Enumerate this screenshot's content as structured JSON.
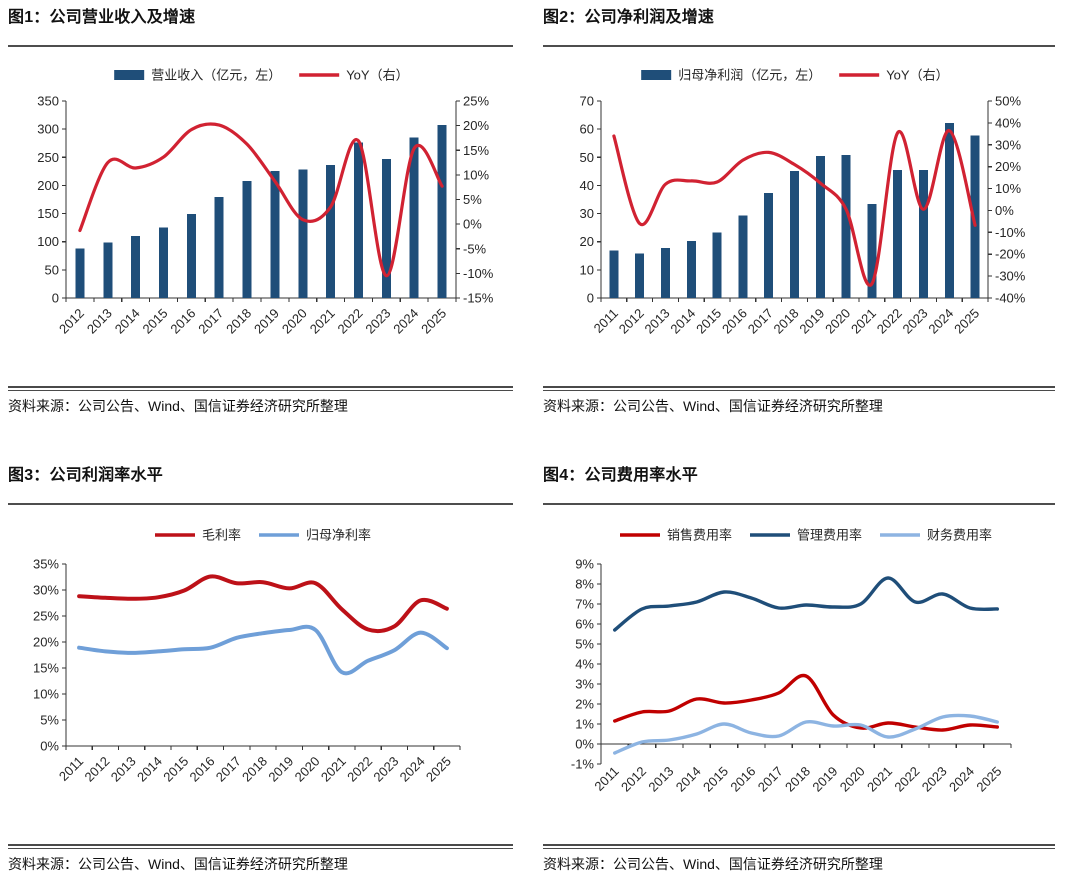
{
  "chart_data": [
    {
      "type": "combo_bar_line",
      "title": "图1：公司营业收入及增速",
      "source": "资料来源：公司公告、Wind、国信证券经济研究所整理",
      "categories": [
        "2012",
        "2013",
        "2014",
        "2015",
        "2016",
        "2017",
        "2018",
        "2019",
        "2020",
        "2021",
        "2022",
        "2023",
        "2024",
        "2025"
      ],
      "bar_series": {
        "name": "营业收入（亿元，左）",
        "color": "#1F4E79",
        "values": [
          88,
          99,
          110,
          125,
          149,
          179,
          208,
          226,
          228,
          236,
          276,
          247,
          285,
          307
        ]
      },
      "line_series": {
        "name": "YoY（右）",
        "color": "#D12232",
        "values": [
          -1.3,
          12.5,
          11.4,
          13.6,
          19.2,
          20.1,
          16.2,
          8.7,
          0.9,
          3.5,
          16.9,
          -10.5,
          15.4,
          7.7
        ]
      },
      "left_axis": {
        "min": 0,
        "max": 350,
        "ticks": [
          "0",
          "50",
          "100",
          "150",
          "200",
          "250",
          "300",
          "350"
        ]
      },
      "right_axis": {
        "min": -15,
        "max": 25,
        "ticks": [
          "-15%",
          "-10%",
          "-5%",
          "0%",
          "5%",
          "10%",
          "15%",
          "20%",
          "25%"
        ]
      },
      "grid": false,
      "legend_position": "top"
    },
    {
      "type": "combo_bar_line",
      "title": "图2：公司净利润及增速",
      "source": "资料来源：公司公告、Wind、国信证券经济研究所整理",
      "categories": [
        "2011",
        "2012",
        "2013",
        "2014",
        "2015",
        "2016",
        "2017",
        "2018",
        "2019",
        "2020",
        "2021",
        "2022",
        "2023",
        "2024",
        "2025"
      ],
      "bar_series": {
        "name": "归母净利润（亿元，左）",
        "color": "#1F4E79",
        "values": [
          16.8,
          15.8,
          17.7,
          20.3,
          23.3,
          29.3,
          37.3,
          45.1,
          50.5,
          50.8,
          33.4,
          45.4,
          45.4,
          62.1,
          57.8
        ]
      },
      "line_series": {
        "name": "YoY（右）",
        "color": "#D12232",
        "values": [
          34,
          -6,
          12,
          13.5,
          13,
          23,
          26.5,
          21,
          12.5,
          0.5,
          -33.5,
          35.5,
          0.5,
          36.5,
          -6.8
        ]
      },
      "left_axis": {
        "min": 0,
        "max": 70,
        "ticks": [
          "0",
          "10",
          "20",
          "30",
          "40",
          "50",
          "60",
          "70"
        ]
      },
      "right_axis": {
        "min": -40,
        "max": 50,
        "ticks": [
          "-40%",
          "-30%",
          "-20%",
          "-10%",
          "0%",
          "10%",
          "20%",
          "30%",
          "40%",
          "50%"
        ]
      },
      "grid": false,
      "legend_position": "top"
    },
    {
      "type": "line",
      "title": "图3：公司利润率水平",
      "source": "资料来源：公司公告、Wind、国信证券经济研究所整理",
      "categories": [
        "2011",
        "2012",
        "2013",
        "2014",
        "2015",
        "2016",
        "2017",
        "2018",
        "2019",
        "2020",
        "2021",
        "2022",
        "2023",
        "2024",
        "2025"
      ],
      "series": [
        {
          "name": "毛利率",
          "color": "#BD1118",
          "values": [
            28.8,
            28.5,
            28.3,
            28.6,
            29.9,
            32.6,
            31.3,
            31.5,
            30.3,
            31.3,
            26.3,
            22.4,
            23.0,
            28.0,
            26.4
          ]
        },
        {
          "name": "归母净利率",
          "color": "#6F9FD8",
          "values": [
            18.9,
            18.2,
            17.9,
            18.2,
            18.6,
            18.9,
            20.8,
            21.7,
            22.3,
            22.3,
            14.2,
            16.4,
            18.4,
            21.8,
            18.8
          ]
        }
      ],
      "left_axis": {
        "min": 0,
        "max": 35,
        "ticks": [
          "0%",
          "5%",
          "10%",
          "15%",
          "20%",
          "25%",
          "30%",
          "35%"
        ]
      },
      "grid": false,
      "legend_position": "top"
    },
    {
      "type": "line",
      "title": "图4：公司费用率水平",
      "source": "资料来源：公司公告、Wind、国信证券经济研究所整理",
      "categories": [
        "2011",
        "2012",
        "2013",
        "2014",
        "2015",
        "2016",
        "2017",
        "2018",
        "2019",
        "2020",
        "2021",
        "2022",
        "2023",
        "2024",
        "2025"
      ],
      "series": [
        {
          "name": "销售费用率",
          "color": "#C00000",
          "values": [
            1.15,
            1.6,
            1.65,
            2.25,
            2.05,
            2.2,
            2.55,
            3.4,
            1.45,
            0.8,
            1.05,
            0.85,
            0.7,
            0.95,
            0.85
          ]
        },
        {
          "name": "管理费用率",
          "color": "#1F4E79",
          "values": [
            5.7,
            6.75,
            6.9,
            7.1,
            7.6,
            7.3,
            6.8,
            6.95,
            6.85,
            7.0,
            8.3,
            7.1,
            7.5,
            6.8,
            6.75
          ]
        },
        {
          "name": "财务费用率",
          "color": "#8DB4E2",
          "values": [
            -0.45,
            0.1,
            0.2,
            0.5,
            1.0,
            0.55,
            0.4,
            1.1,
            0.9,
            0.95,
            0.35,
            0.75,
            1.35,
            1.4,
            1.1
          ]
        }
      ],
      "left_axis": {
        "min": -1,
        "max": 9,
        "ticks": [
          "-1%",
          "0%",
          "1%",
          "2%",
          "3%",
          "4%",
          "5%",
          "6%",
          "7%",
          "8%",
          "9%"
        ],
        "zero_axis": true
      },
      "grid": false,
      "legend_position": "top"
    }
  ]
}
